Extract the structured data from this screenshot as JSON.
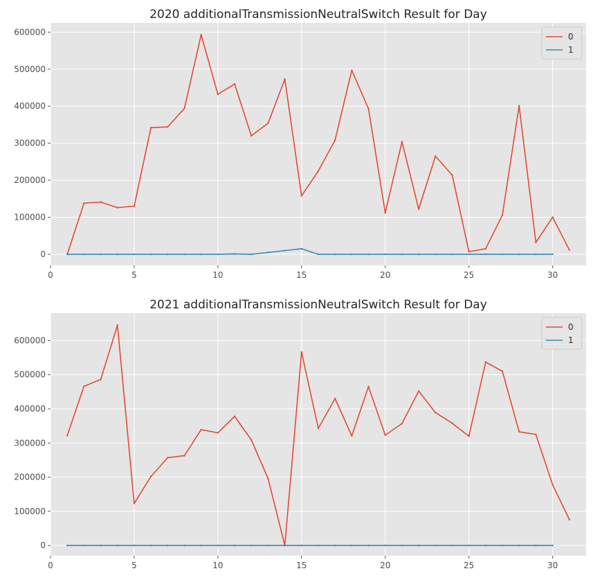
{
  "chart_data": [
    {
      "type": "line",
      "title": "2020 additionalTransmissionNeutralSwitch Result for Day",
      "xlabel": "",
      "ylabel": "",
      "xlim": [
        0,
        32
      ],
      "ylim": [
        -30000,
        625000
      ],
      "xticks": [
        0,
        5,
        10,
        15,
        20,
        25,
        30
      ],
      "yticks": [
        0,
        100000,
        200000,
        300000,
        400000,
        500000,
        600000
      ],
      "grid": true,
      "legend": "top-right",
      "series": [
        {
          "name": "0",
          "color": "#E24A33",
          "x": [
            1,
            2,
            3,
            4,
            5,
            6,
            7,
            8,
            9,
            10,
            11,
            12,
            13,
            14,
            15,
            16,
            17,
            18,
            19,
            20,
            21,
            22,
            23,
            24,
            25,
            26,
            27,
            28,
            29,
            30,
            31
          ],
          "y": [
            0,
            138000,
            141000,
            126000,
            130000,
            342000,
            344000,
            394000,
            593000,
            432000,
            460000,
            320000,
            354000,
            473000,
            158000,
            225000,
            308000,
            497000,
            393000,
            112000,
            304000,
            122000,
            265000,
            214000,
            7000,
            15000,
            106000,
            401000,
            32000,
            100000,
            12000
          ]
        },
        {
          "name": "1",
          "color": "#348ABD",
          "x": [
            1,
            2,
            3,
            4,
            5,
            6,
            7,
            8,
            9,
            10,
            11,
            12,
            13,
            14,
            15,
            16,
            17,
            18,
            19,
            20,
            21,
            22,
            23,
            24,
            25,
            26,
            27,
            28,
            29,
            30
          ],
          "y": [
            0,
            0,
            0,
            0,
            0,
            0,
            0,
            0,
            0,
            0,
            1000,
            0,
            5000,
            10000,
            15000,
            0,
            0,
            0,
            0,
            0,
            0,
            0,
            0,
            0,
            0,
            0,
            0,
            0,
            0,
            0
          ]
        }
      ]
    },
    {
      "type": "line",
      "title": "2021 additionalTransmissionNeutralSwitch Result for Day",
      "xlabel": "",
      "ylabel": "",
      "xlim": [
        0,
        32
      ],
      "ylim": [
        -30000,
        680000
      ],
      "xticks": [
        0,
        5,
        10,
        15,
        20,
        25,
        30
      ],
      "yticks": [
        0,
        100000,
        200000,
        300000,
        400000,
        500000,
        600000
      ],
      "grid": true,
      "legend": "top-right",
      "series": [
        {
          "name": "0",
          "color": "#E24A33",
          "x": [
            1,
            2,
            3,
            4,
            5,
            6,
            7,
            8,
            9,
            10,
            11,
            12,
            13,
            14,
            15,
            16,
            17,
            18,
            19,
            20,
            21,
            22,
            23,
            24,
            25,
            26,
            27,
            28,
            29,
            30,
            31
          ],
          "y": [
            322000,
            466000,
            486000,
            645000,
            123000,
            202000,
            257000,
            263000,
            339000,
            330000,
            378000,
            309000,
            196000,
            0,
            566000,
            343000,
            430000,
            321000,
            465000,
            323000,
            357000,
            452000,
            389000,
            358000,
            320000,
            537000,
            510000,
            333000,
            325000,
            178000,
            76000
          ]
        },
        {
          "name": "1",
          "color": "#348ABD",
          "x": [
            1,
            2,
            3,
            4,
            5,
            6,
            7,
            8,
            9,
            10,
            11,
            12,
            13,
            14,
            15,
            16,
            17,
            18,
            19,
            20,
            21,
            22,
            23,
            24,
            25,
            26,
            27,
            28,
            29,
            30
          ],
          "y": [
            0,
            0,
            0,
            0,
            0,
            0,
            0,
            0,
            0,
            0,
            0,
            0,
            0,
            0,
            0,
            0,
            0,
            0,
            0,
            0,
            0,
            0,
            0,
            0,
            0,
            0,
            0,
            0,
            0,
            0
          ]
        }
      ]
    }
  ]
}
